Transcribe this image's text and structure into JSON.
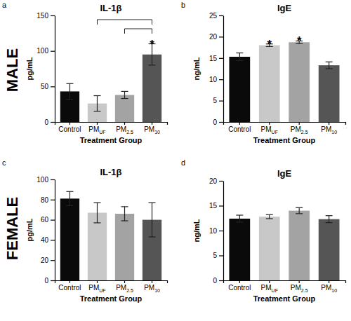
{
  "row_labels": [
    "MALE",
    "FEMALE"
  ],
  "chart_data": [
    {
      "type": "bar",
      "panel_label": "a",
      "title": "IL-1β",
      "ylabel": "pg/mL",
      "xlabel": "Treatment Group",
      "categories": [
        "Control",
        "PMUF",
        "PM2.5",
        "PM10"
      ],
      "values": [
        43,
        26,
        38,
        95
      ],
      "errors": [
        11,
        11,
        5,
        15
      ],
      "colors": [
        "#0a0a0a",
        "#c8c8c8",
        "#a3a3a3",
        "#555555"
      ],
      "ylim": [
        0,
        150
      ],
      "yticks": [
        0,
        50,
        100,
        150
      ],
      "significance": [
        null,
        null,
        null,
        "*"
      ],
      "comparisons": [
        [
          "PMUF",
          "PM10"
        ],
        [
          "PM2.5",
          "PM10"
        ]
      ]
    },
    {
      "type": "bar",
      "panel_label": "b",
      "title": "IgE",
      "ylabel": "ng/mL",
      "xlabel": "Treatment Group",
      "categories": [
        "Control",
        "PMUF",
        "PM2.5",
        "PM10"
      ],
      "values": [
        15.3,
        18.0,
        18.7,
        13.3
      ],
      "errors": [
        0.9,
        0.3,
        0.3,
        0.8
      ],
      "colors": [
        "#0a0a0a",
        "#c8c8c8",
        "#a3a3a3",
        "#555555"
      ],
      "ylim": [
        0,
        25
      ],
      "yticks": [
        0,
        5,
        10,
        15,
        20,
        25
      ],
      "significance": [
        null,
        "*",
        "*",
        null
      ]
    },
    {
      "type": "bar",
      "panel_label": "c",
      "title": "IL-1β",
      "ylabel": "pg/mL",
      "xlabel": "Treatment Group",
      "categories": [
        "Control",
        "PMUF",
        "PM2.5",
        "PM10"
      ],
      "values": [
        81,
        67,
        66,
        60
      ],
      "errors": [
        7,
        10,
        7,
        17
      ],
      "colors": [
        "#0a0a0a",
        "#c8c8c8",
        "#a3a3a3",
        "#555555"
      ],
      "ylim": [
        0,
        100
      ],
      "yticks": [
        0,
        20,
        40,
        60,
        80,
        100
      ]
    },
    {
      "type": "bar",
      "panel_label": "d",
      "title": "IgE",
      "ylabel": "ng/mL",
      "xlabel": "Treatment Group",
      "categories": [
        "Control",
        "PMUF",
        "PM2.5",
        "PM10"
      ],
      "values": [
        12.4,
        12.8,
        14.0,
        12.3
      ],
      "errors": [
        0.7,
        0.4,
        0.6,
        0.7
      ],
      "colors": [
        "#0a0a0a",
        "#c8c8c8",
        "#a3a3a3",
        "#555555"
      ],
      "ylim": [
        0,
        20
      ],
      "yticks": [
        0,
        5,
        10,
        15,
        20
      ]
    }
  ]
}
